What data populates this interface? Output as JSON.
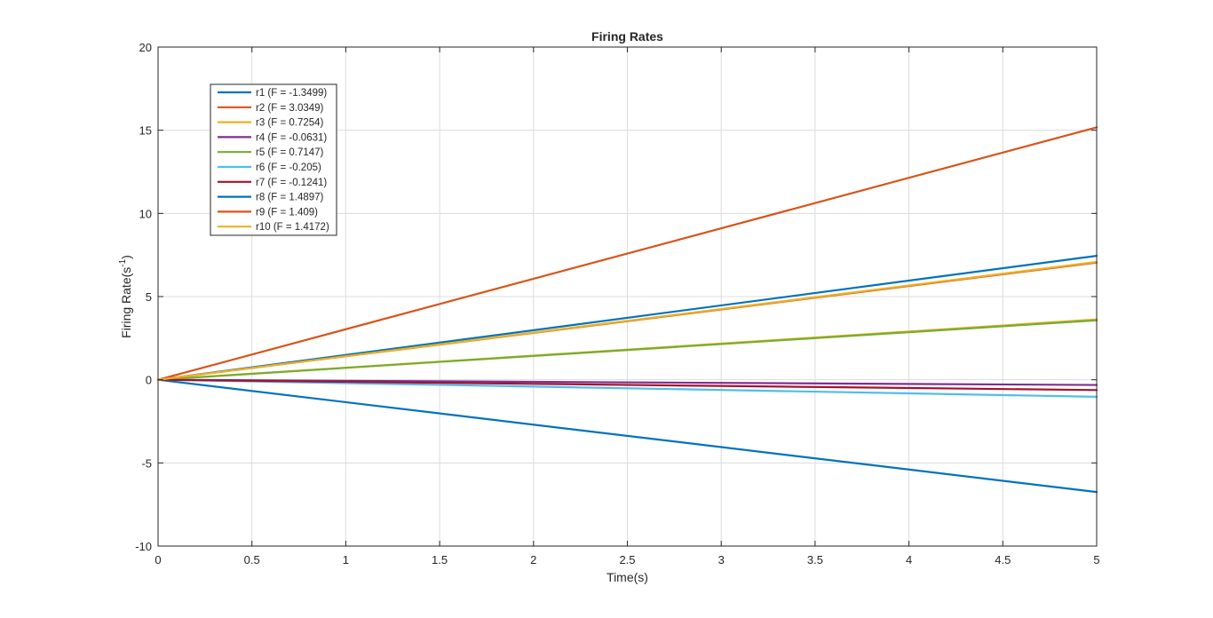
{
  "chart_data": {
    "type": "line",
    "title": "Firing Rates",
    "xlabel": "Time(s)",
    "ylabel_main": "Firing Rate(s",
    "ylabel_sup": "-1",
    "ylabel_close": ")",
    "xlim": [
      0,
      5
    ],
    "ylim": [
      -10,
      20
    ],
    "xticks": [
      0,
      0.5,
      1,
      1.5,
      2,
      2.5,
      3,
      3.5,
      4,
      4.5,
      5
    ],
    "yticks": [
      -10,
      -5,
      0,
      5,
      10,
      15,
      20
    ],
    "grid": true,
    "legend_position": "top-left",
    "x": [
      0,
      5
    ],
    "series": [
      {
        "name": "r1 (F = -1.3499)",
        "slope": -1.3499,
        "values": [
          0,
          -6.7495
        ],
        "color": "#0072BD"
      },
      {
        "name": "r2 (F = 3.0349)",
        "slope": 3.0349,
        "values": [
          0,
          15.1745
        ],
        "color": "#D95319"
      },
      {
        "name": "r3 (F = 0.7254)",
        "slope": 0.7254,
        "values": [
          0,
          3.627
        ],
        "color": "#EDB120"
      },
      {
        "name": "r4 (F = -0.0631)",
        "slope": -0.0631,
        "values": [
          0,
          -0.3155
        ],
        "color": "#7E2F8E"
      },
      {
        "name": "r5 (F = 0.7147)",
        "slope": 0.7147,
        "values": [
          0,
          3.5735
        ],
        "color": "#77AC30"
      },
      {
        "name": "r6 (F = -0.205)",
        "slope": -0.205,
        "values": [
          0,
          -1.025
        ],
        "color": "#4DBEEE"
      },
      {
        "name": "r7 (F = -0.1241)",
        "slope": -0.1241,
        "values": [
          0,
          -0.6205
        ],
        "color": "#A2142F"
      },
      {
        "name": "r8 (F = 1.4897)",
        "slope": 1.4897,
        "values": [
          0,
          7.4485
        ],
        "color": "#0072BD"
      },
      {
        "name": "r9 (F = 1.409)",
        "slope": 1.409,
        "values": [
          0,
          7.045
        ],
        "color": "#D95319"
      },
      {
        "name": "r10 (F = 1.4172)",
        "slope": 1.4172,
        "values": [
          0,
          7.086
        ],
        "color": "#EDB120"
      }
    ]
  }
}
